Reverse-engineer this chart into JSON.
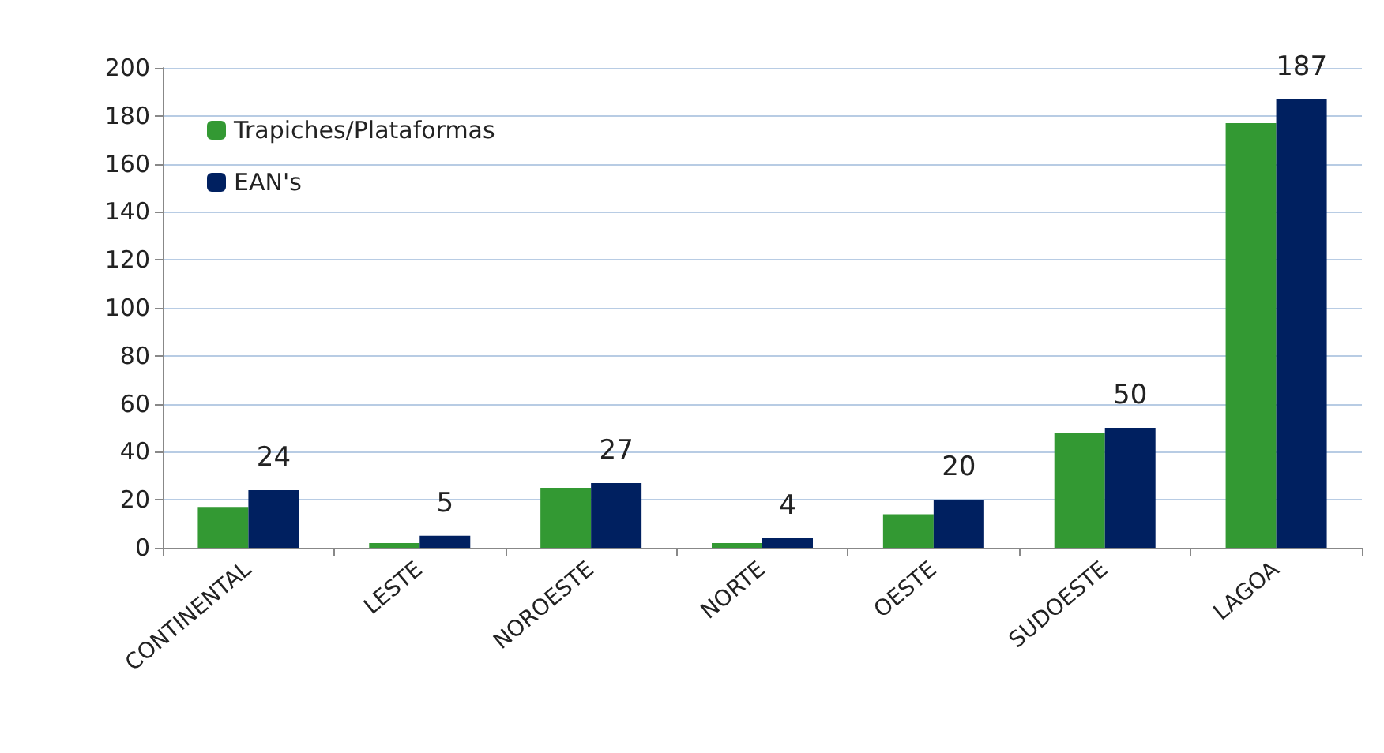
{
  "chart_data": {
    "type": "bar",
    "categories": [
      "CONTINENTAL",
      "LESTE",
      "NOROESTE",
      "NORTE",
      "OESTE",
      "SUDOESTE",
      "LAGOA"
    ],
    "series": [
      {
        "name": "Trapiches/Plataformas",
        "color": "#339933",
        "values": [
          17,
          2,
          25,
          2,
          14,
          48,
          177
        ]
      },
      {
        "name": "EAN's",
        "color": "#002060",
        "values": [
          24,
          5,
          27,
          4,
          20,
          50,
          187
        ],
        "value_labels": [
          "24",
          "5",
          "27",
          "4",
          "20",
          "50",
          "187"
        ]
      }
    ],
    "ylim": [
      0,
      200
    ],
    "yticks": [
      0,
      20,
      40,
      60,
      80,
      100,
      120,
      140,
      160,
      180,
      200
    ],
    "grid": "y",
    "legend": "top left"
  }
}
